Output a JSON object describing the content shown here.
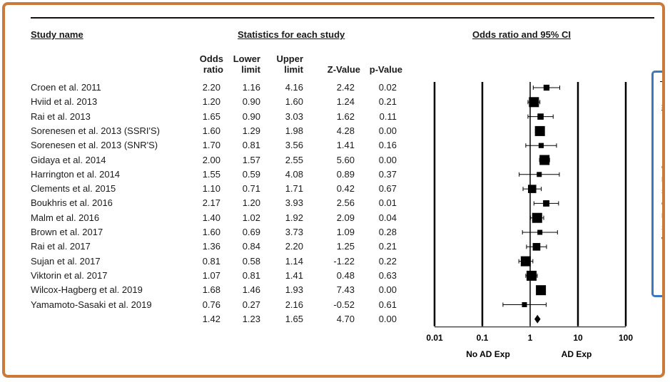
{
  "headers": {
    "study_name": "Study name",
    "statistics": "Statistics for each study",
    "odds_ratio_ci": "Odds ratio and 95% CI",
    "col_or_1": "Odds",
    "col_or_2": "ratio",
    "col_lower_1": "Lower",
    "col_lower_2": "limit",
    "col_upper_1": "Upper",
    "col_upper_2": "limit",
    "col_z": "Z-Value",
    "col_p": "p-Value"
  },
  "chart_data": {
    "type": "forest",
    "xscale": "log",
    "xlim": [
      0.01,
      100
    ],
    "xticks": [
      "0.01",
      "0.1",
      "1",
      "10",
      "100"
    ],
    "xlabel_left": "No AD Exp",
    "xlabel_right": "AD Exp",
    "studies": [
      {
        "name": "Croen et al. 2011",
        "or": "2.20",
        "lower": "1.16",
        "upper": "4.16",
        "z": "2.42",
        "p": "0.02"
      },
      {
        "name": "Hviid et al. 2013",
        "or": "1.20",
        "lower": "0.90",
        "upper": "1.60",
        "z": "1.24",
        "p": "0.21"
      },
      {
        "name": "Rai et al. 2013",
        "or": "1.65",
        "lower": "0.90",
        "upper": "3.03",
        "z": "1.62",
        "p": "0.11"
      },
      {
        "name": "Sorenesen et al. 2013 (SSRI'S)",
        "or": "1.60",
        "lower": "1.29",
        "upper": "1.98",
        "z": "4.28",
        "p": "0.00"
      },
      {
        "name": "Sorenesen et al. 2013 (SNR'S)",
        "or": "1.70",
        "lower": "0.81",
        "upper": "3.56",
        "z": "1.41",
        "p": "0.16"
      },
      {
        "name": "Gidaya et al. 2014",
        "or": "2.00",
        "lower": "1.57",
        "upper": "2.55",
        "z": "5.60",
        "p": "0.00"
      },
      {
        "name": "Harrington et al. 2014",
        "or": "1.55",
        "lower": "0.59",
        "upper": "4.08",
        "z": "0.89",
        "p": "0.37"
      },
      {
        "name": "Clements et al. 2015",
        "or": "1.10",
        "lower": "0.71",
        "upper": "1.71",
        "z": "0.42",
        "p": "0.67"
      },
      {
        "name": "Boukhris et al. 2016",
        "or": "2.17",
        "lower": "1.20",
        "upper": "3.93",
        "z": "2.56",
        "p": "0.01"
      },
      {
        "name": "Malm et al. 2016",
        "or": "1.40",
        "lower": "1.02",
        "upper": "1.92",
        "z": "2.09",
        "p": "0.04"
      },
      {
        "name": "Brown et al. 2017",
        "or": "1.60",
        "lower": "0.69",
        "upper": "3.73",
        "z": "1.09",
        "p": "0.28"
      },
      {
        "name": "Rai et al. 2017",
        "or": "1.36",
        "lower": "0.84",
        "upper": "2.20",
        "z": "1.25",
        "p": "0.21"
      },
      {
        "name": "Sujan et al. 2017",
        "or": "0.81",
        "lower": "0.58",
        "upper": "1.14",
        "z": "-1.22",
        "p": "0.22"
      },
      {
        "name": "Viktorin et al. 2017",
        "or": "1.07",
        "lower": "0.81",
        "upper": "1.41",
        "z": "0.48",
        "p": "0.63"
      },
      {
        "name": "Wilcox-Hagberg et al. 2019",
        "or": "1.68",
        "lower": "1.46",
        "upper": "1.93",
        "z": "7.43",
        "p": "0.00"
      },
      {
        "name": "Yamamoto-Sasaki et al. 2019",
        "or": "0.76",
        "lower": "0.27",
        "upper": "2.16",
        "z": "-0.52",
        "p": "0.61"
      }
    ],
    "pooled": {
      "name": "",
      "or": "1.42",
      "lower": "1.23",
      "upper": "1.65",
      "z": "4.70",
      "p": "0.00"
    }
  },
  "side_panel": {
    "header": "St",
    "items": [
      "Cr",
      "Hv",
      "So",
      "Cl",
      "Ma",
      "Su",
      "Wi"
    ]
  }
}
